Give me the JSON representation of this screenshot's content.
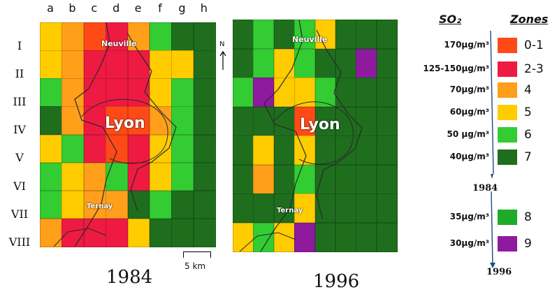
{
  "colors": {
    "z01": "#ff4a17",
    "z23": "#ee1a42",
    "z4": "#ff9f1a",
    "z5": "#ffcc00",
    "z6": "#33cc33",
    "z7": "#1e6e1e",
    "z8": "#1faa2a",
    "z9": "#8e1a9e"
  },
  "map1984": {
    "columns": [
      "a",
      "b",
      "c",
      "d",
      "e",
      "f",
      "g",
      "h"
    ],
    "rows": [
      "I",
      "II",
      "III",
      "IV",
      "V",
      "VI",
      "VII",
      "VIII"
    ],
    "city": "Lyon",
    "north_town": "Neuville",
    "south_town": "Ternay",
    "caption": "1984",
    "scale_label": "5 km",
    "grid": [
      [
        "z5",
        "z4",
        "z01",
        "z23",
        "z4",
        "z6",
        "z7",
        "z7"
      ],
      [
        "z5",
        "z4",
        "z23",
        "z23",
        "z23",
        "z5",
        "z5",
        "z7"
      ],
      [
        "z6",
        "z4",
        "z23",
        "z23",
        "z23",
        "z5",
        "z6",
        "z7"
      ],
      [
        "z7",
        "z4",
        "z23",
        "z01",
        "z01",
        "z4",
        "z6",
        "z7"
      ],
      [
        "z5",
        "z6",
        "z23",
        "z01",
        "z23",
        "z5",
        "z6",
        "z7"
      ],
      [
        "z6",
        "z5",
        "z4",
        "z6",
        "z23",
        "z5",
        "z6",
        "z7"
      ],
      [
        "z6",
        "z5",
        "z4",
        "z4",
        "z7",
        "z6",
        "z7",
        "z7"
      ],
      [
        "z4",
        "z23",
        "z23",
        "z23",
        "z5",
        "z7",
        "z7",
        "z7"
      ]
    ]
  },
  "map1996": {
    "city": "Lyon",
    "north_town": "Neuville",
    "south_town": "Ternay",
    "caption": "1996",
    "north_label": "N",
    "grid": [
      [
        "z7",
        "z6",
        "z7",
        "z6",
        "z5",
        "z7",
        "z7",
        "z7"
      ],
      [
        "z7",
        "z6",
        "z5",
        "z6",
        "z7",
        "z7",
        "z9",
        "z7"
      ],
      [
        "z6",
        "z9",
        "z5",
        "z5",
        "z6",
        "z7",
        "z7",
        "z7"
      ],
      [
        "z7",
        "z7",
        "z7",
        "z01",
        "z7",
        "z7",
        "z7",
        "z7"
      ],
      [
        "z7",
        "z5",
        "z7",
        "z5",
        "z7",
        "z7",
        "z7",
        "z7"
      ],
      [
        "z7",
        "z4",
        "z7",
        "z6",
        "z7",
        "z7",
        "z7",
        "z7"
      ],
      [
        "z7",
        "z7",
        "z7",
        "z5",
        "z7",
        "z7",
        "z7",
        "z7"
      ],
      [
        "z5",
        "z6",
        "z5",
        "z9",
        "z7",
        "z7",
        "z7",
        "z7"
      ]
    ]
  },
  "legend": {
    "so2_label": "SO₂",
    "zones_label": "Zones",
    "entries": [
      {
        "conc": "170µg/m³",
        "zone": "0-1",
        "color": "z01"
      },
      {
        "conc": "125-150µg/m³",
        "zone": "2-3",
        "color": "z23"
      },
      {
        "conc": "70µg/m³",
        "zone": "4",
        "color": "z4"
      },
      {
        "conc": "60µg/m³",
        "zone": "5",
        "color": "z5"
      },
      {
        "conc": "50 µg/m³",
        "zone": "6",
        "color": "z6"
      },
      {
        "conc": "40µg/m³",
        "zone": "7",
        "color": "z7"
      },
      {
        "conc": "35µg/m³",
        "zone": "8",
        "color": "z8"
      },
      {
        "conc": "30µg/m³",
        "zone": "9",
        "color": "z9"
      }
    ],
    "year_1984": "1984",
    "year_1996": "1996"
  }
}
